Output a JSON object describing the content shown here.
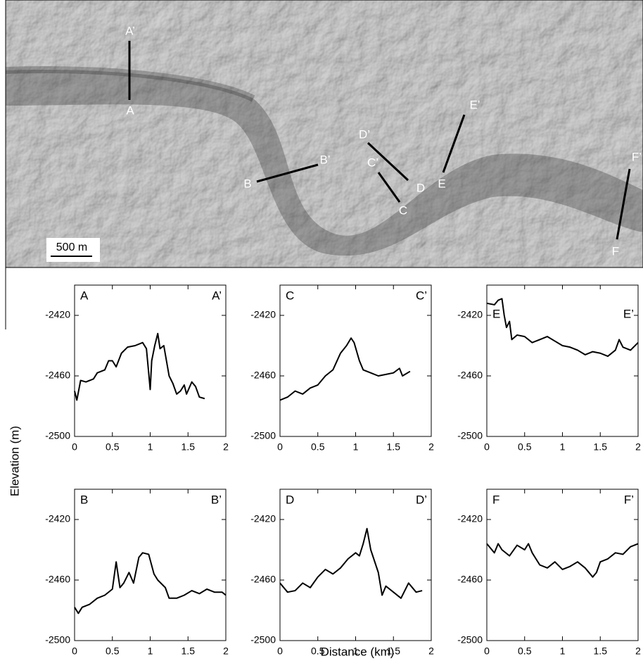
{
  "image": {
    "labels": [
      "A’",
      "A",
      "B’",
      "B",
      "C’",
      "C",
      "D’",
      "D",
      "E’",
      "E",
      "F’",
      "F"
    ],
    "scale_bar": "500 m"
  },
  "figure": {
    "y_label": "Elevation (m)",
    "x_label": "Distance (km)"
  },
  "chart_data": [
    {
      "type": "line",
      "label_left": "A",
      "label_right": "A’",
      "x": [
        0,
        0.03,
        0.08,
        0.15,
        0.25,
        0.3,
        0.4,
        0.45,
        0.5,
        0.55,
        0.62,
        0.7,
        0.8,
        0.9,
        0.95,
        0.98,
        1.0,
        1.02,
        1.06,
        1.1,
        1.13,
        1.18,
        1.25,
        1.3,
        1.35,
        1.4,
        1.45,
        1.48,
        1.55,
        1.6,
        1.65,
        1.72
      ],
      "values": [
        -2470,
        -2476,
        -2463,
        -2464,
        -2462,
        -2458,
        -2456,
        -2450,
        -2450,
        -2454,
        -2445,
        -2441,
        -2440,
        -2438,
        -2442,
        -2458,
        -2469,
        -2450,
        -2440,
        -2432,
        -2442,
        -2440,
        -2460,
        -2465,
        -2472,
        -2470,
        -2466,
        -2472,
        -2464,
        -2467,
        -2474,
        -2475
      ],
      "xlim": [
        0,
        2
      ],
      "ylim": [
        -2500,
        -2400
      ],
      "xticks": [
        0,
        0.5,
        1,
        1.5,
        2
      ],
      "yticks": [
        -2500,
        -2460,
        -2420
      ],
      "color": "#000000"
    },
    {
      "type": "line",
      "label_left": "C",
      "label_right": "C’",
      "x": [
        0,
        0.1,
        0.2,
        0.3,
        0.4,
        0.5,
        0.6,
        0.7,
        0.8,
        0.88,
        0.94,
        0.98,
        1.05,
        1.1,
        1.2,
        1.3,
        1.4,
        1.5,
        1.58,
        1.62,
        1.72
      ],
      "values": [
        -2476,
        -2474,
        -2470,
        -2472,
        -2468,
        -2466,
        -2460,
        -2456,
        -2445,
        -2440,
        -2435,
        -2438,
        -2450,
        -2456,
        -2458,
        -2460,
        -2459,
        -2458,
        -2455,
        -2460,
        -2457
      ],
      "xlim": [
        0,
        2
      ],
      "ylim": [
        -2500,
        -2400
      ],
      "xticks": [
        0,
        0.5,
        1,
        1.5,
        2
      ],
      "yticks": [
        -2500,
        -2460,
        -2420
      ],
      "color": "#000000"
    },
    {
      "type": "line",
      "label_left": "E",
      "label_right": "E’",
      "x": [
        0,
        0.1,
        0.15,
        0.2,
        0.23,
        0.26,
        0.3,
        0.33,
        0.4,
        0.5,
        0.6,
        0.7,
        0.8,
        0.9,
        1.0,
        1.1,
        1.2,
        1.3,
        1.4,
        1.5,
        1.6,
        1.7,
        1.75,
        1.8,
        1.9,
        2.0
      ],
      "values": [
        -2412,
        -2413,
        -2410,
        -2409,
        -2420,
        -2428,
        -2424,
        -2436,
        -2433,
        -2434,
        -2438,
        -2436,
        -2434,
        -2437,
        -2440,
        -2441,
        -2443,
        -2446,
        -2444,
        -2445,
        -2447,
        -2443,
        -2436,
        -2441,
        -2443,
        -2438
      ],
      "xlim": [
        0,
        2
      ],
      "ylim": [
        -2500,
        -2400
      ],
      "xticks": [
        0,
        0.5,
        1,
        1.5,
        2
      ],
      "yticks": [
        -2500,
        -2460,
        -2420
      ],
      "color": "#000000"
    },
    {
      "type": "line",
      "label_left": "B",
      "label_right": "B’",
      "x": [
        0,
        0.05,
        0.1,
        0.2,
        0.3,
        0.4,
        0.5,
        0.55,
        0.6,
        0.65,
        0.72,
        0.78,
        0.85,
        0.9,
        0.98,
        1.05,
        1.1,
        1.2,
        1.25,
        1.35,
        1.45,
        1.55,
        1.65,
        1.75,
        1.85,
        1.95,
        2.0
      ],
      "values": [
        -2478,
        -2482,
        -2478,
        -2476,
        -2472,
        -2470,
        -2466,
        -2448,
        -2465,
        -2462,
        -2455,
        -2462,
        -2445,
        -2442,
        -2443,
        -2456,
        -2460,
        -2465,
        -2472,
        -2472,
        -2470,
        -2467,
        -2469,
        -2466,
        -2468,
        -2468,
        -2470
      ],
      "xlim": [
        0,
        2
      ],
      "ylim": [
        -2500,
        -2400
      ],
      "xticks": [
        0,
        0.5,
        1,
        1.5,
        2
      ],
      "yticks": [
        -2500,
        -2460,
        -2420
      ],
      "color": "#000000"
    },
    {
      "type": "line",
      "label_left": "D",
      "label_right": "D’",
      "x": [
        0,
        0.1,
        0.2,
        0.3,
        0.4,
        0.5,
        0.6,
        0.7,
        0.8,
        0.9,
        1.0,
        1.05,
        1.1,
        1.15,
        1.2,
        1.3,
        1.35,
        1.4,
        1.5,
        1.6,
        1.7,
        1.8,
        1.88
      ],
      "values": [
        -2462,
        -2468,
        -2467,
        -2462,
        -2465,
        -2458,
        -2453,
        -2456,
        -2452,
        -2446,
        -2442,
        -2444,
        -2436,
        -2426,
        -2440,
        -2455,
        -2470,
        -2464,
        -2468,
        -2472,
        -2462,
        -2468,
        -2467
      ],
      "xlim": [
        0,
        2
      ],
      "ylim": [
        -2500,
        -2400
      ],
      "xticks": [
        0,
        0.5,
        1,
        1.5,
        2
      ],
      "yticks": [
        -2500,
        -2460,
        -2420
      ],
      "color": "#000000"
    },
    {
      "type": "line",
      "label_left": "F",
      "label_right": "F’",
      "x": [
        0,
        0.1,
        0.15,
        0.2,
        0.3,
        0.4,
        0.5,
        0.55,
        0.6,
        0.7,
        0.8,
        0.9,
        1.0,
        1.1,
        1.2,
        1.3,
        1.4,
        1.45,
        1.5,
        1.6,
        1.7,
        1.8,
        1.9,
        2.0
      ],
      "values": [
        -2436,
        -2442,
        -2436,
        -2440,
        -2444,
        -2437,
        -2440,
        -2436,
        -2442,
        -2450,
        -2452,
        -2448,
        -2453,
        -2451,
        -2448,
        -2452,
        -2458,
        -2455,
        -2448,
        -2446,
        -2442,
        -2443,
        -2438,
        -2436
      ],
      "xlim": [
        0,
        2
      ],
      "ylim": [
        -2500,
        -2400
      ],
      "xticks": [
        0,
        0.5,
        1,
        1.5,
        2
      ],
      "yticks": [
        -2500,
        -2460,
        -2420
      ],
      "color": "#000000"
    }
  ]
}
